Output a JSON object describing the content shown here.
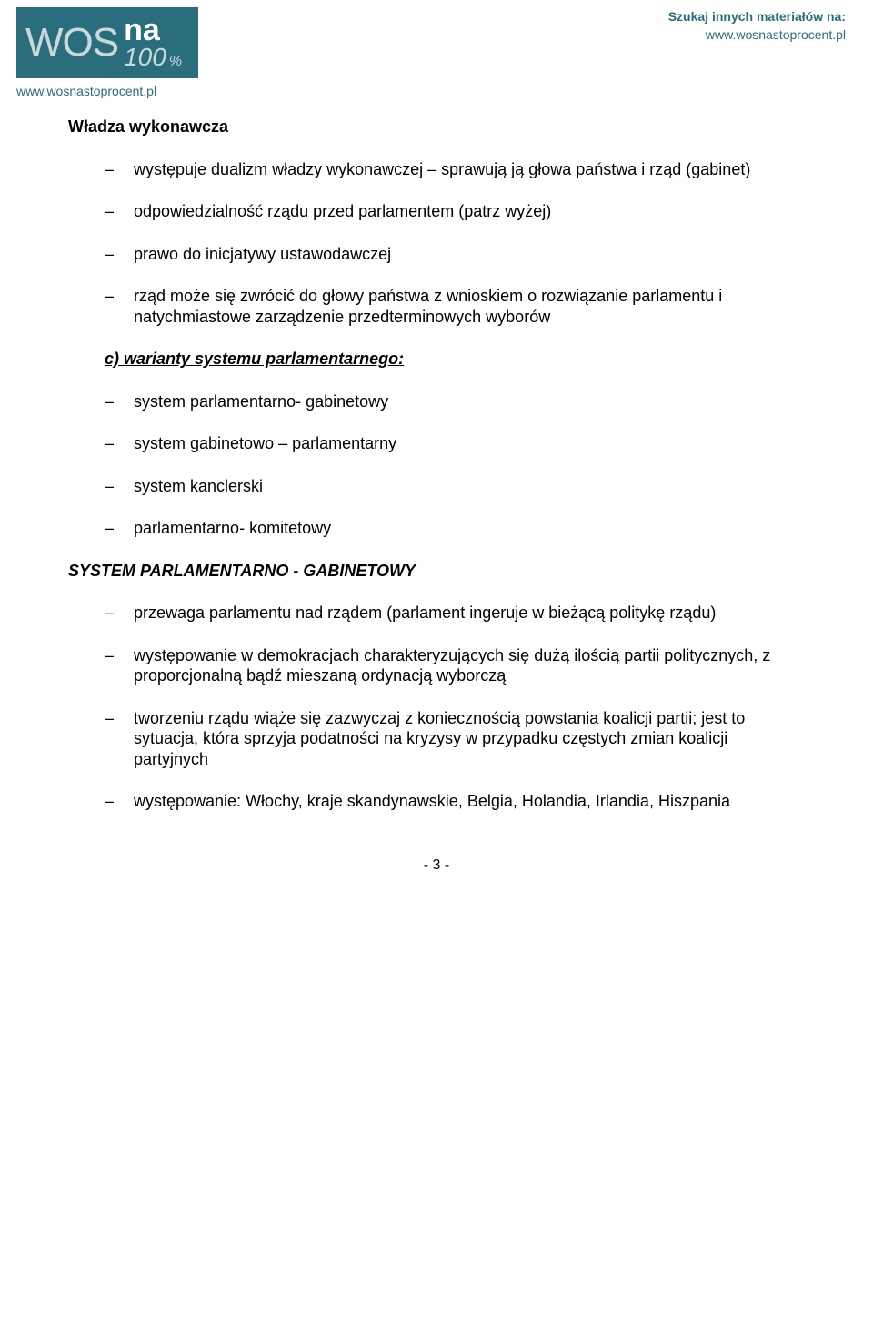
{
  "header": {
    "logo_wos": "WOS",
    "logo_na": "na",
    "logo_100": "100",
    "logo_pct": "%",
    "logo_url": "www.wosnastoprocent.pl",
    "top_right_1": "Szukaj innych materiałów na:",
    "top_right_2": "www.wosnastoprocent.pl"
  },
  "content": {
    "section1_title": "Władza wykonawcza",
    "section1_items": [
      "występuje dualizm władzy wykonawczej – sprawują ją głowa państwa i rząd (gabinet)",
      "odpowiedzialność rządu przed parlamentem (patrz wyżej)",
      "prawo do inicjatywy ustawodawczej",
      "rząd może się zwrócić do głowy państwa z wnioskiem o rozwiązanie parlamentu i natychmiastowe zarządzenie przedterminowych wyborów"
    ],
    "subheading_c": "c) warianty systemu parlamentarnego:",
    "variants": [
      "system parlamentarno- gabinetowy",
      "system gabinetowo – parlamentarny",
      "system kanclerski",
      "parlamentarno- komitetowy"
    ],
    "big_heading": "SYSTEM PARLAMENTARNO - GABINETOWY",
    "pg_items": [
      "przewaga parlamentu nad rządem (parlament ingeruje w bieżącą politykę rządu)",
      "występowanie w demokracjach charakteryzujących się dużą ilością partii politycznych, z proporcjonalną bądź mieszaną ordynacją wyborczą",
      "tworzeniu rządu wiąże się zazwyczaj z koniecznością powstania koalicji partii; jest to sytuacja, która sprzyja podatności na kryzysy w przypadku częstych zmian koalicji partyjnych",
      "występowanie: Włochy, kraje skandynawskie, Belgia, Holandia, Irlandia, Hiszpania"
    ]
  },
  "page_number": "- 3 -",
  "colors": {
    "brand": "#2a6d7c",
    "logo_text_light": "#c9d8db",
    "logo_text_white": "#ffffff",
    "body_text": "#000000",
    "background": "#ffffff"
  },
  "typography": {
    "body_font": "Verdana",
    "body_size_pt": 14,
    "logo_font": "Arial"
  }
}
